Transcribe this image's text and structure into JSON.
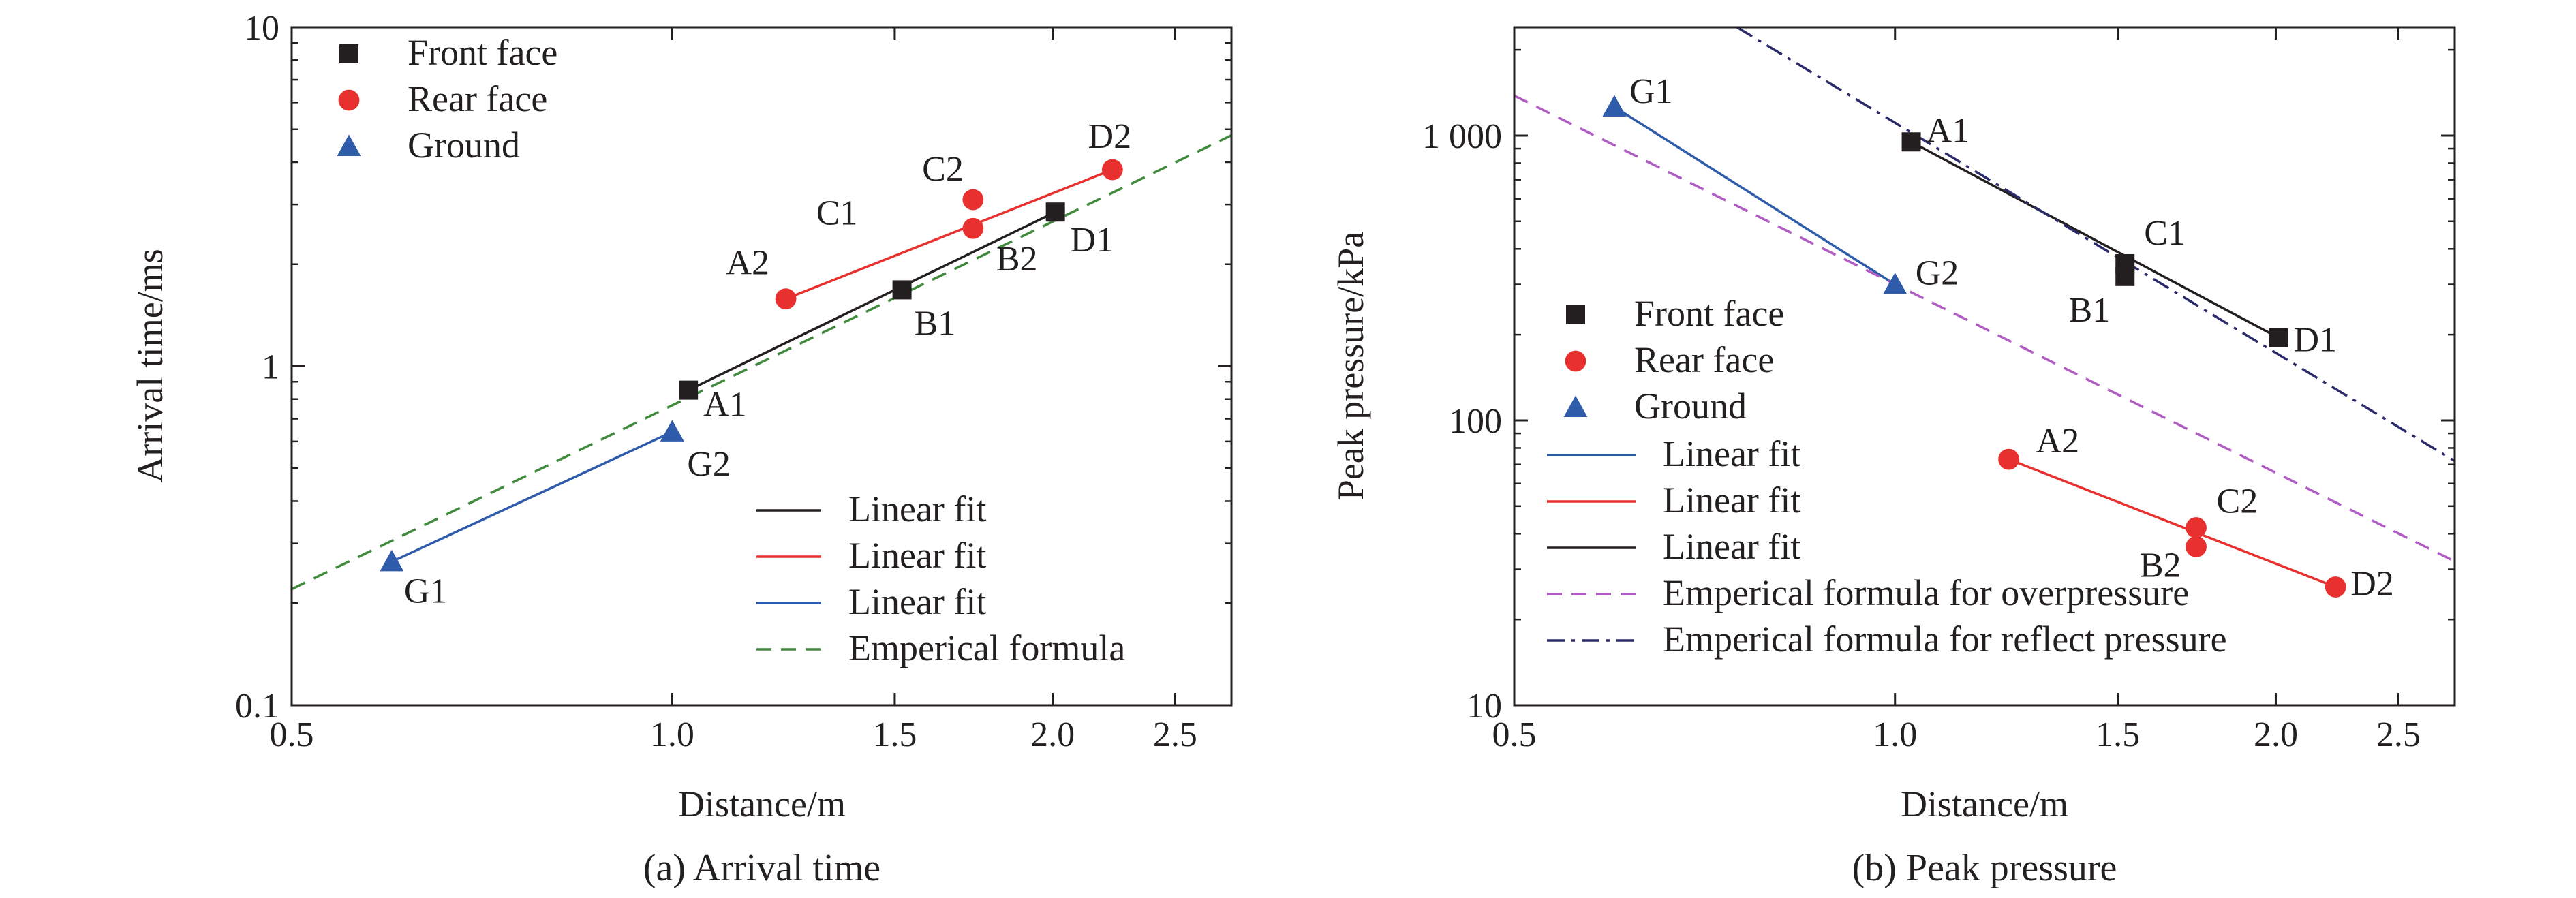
{
  "chart_data": [
    {
      "type": "scatter",
      "caption": "(a) Arrival time",
      "xlabel": "Distance/m",
      "ylabel": "Arrival time/ms",
      "x_scale": "log",
      "y_scale": "log",
      "xlim": [
        0.5,
        2.77
      ],
      "ylim": [
        0.1,
        10
      ],
      "x_ticks": [
        {
          "value": 0.5,
          "label": "0.5"
        },
        {
          "value": 1.0,
          "label": "1.0"
        },
        {
          "value": 1.5,
          "label": "1.5"
        },
        {
          "value": 2.0,
          "label": "2.0"
        },
        {
          "value": 2.5,
          "label": "2.5"
        }
      ],
      "y_ticks": [
        {
          "value": 0.1,
          "label": "0.1"
        },
        {
          "value": 1,
          "label": "1"
        },
        {
          "value": 10,
          "label": "10"
        }
      ],
      "legend_position": "upper-left and lower-right",
      "series": [
        {
          "name": "Front face",
          "marker": "square",
          "color": "#231f20",
          "points": [
            {
              "label": "A1",
              "x": 1.03,
              "y": 0.85
            },
            {
              "label": "B1",
              "x": 1.52,
              "y": 1.68
            },
            {
              "label": "D1",
              "x": 2.01,
              "y": 2.85
            }
          ]
        },
        {
          "name": "Rear face",
          "marker": "circle",
          "color": "#e8312f",
          "points": [
            {
              "label": "A2",
              "x": 1.23,
              "y": 1.58
            },
            {
              "label": "B2",
              "x": 1.73,
              "y": 2.55
            },
            {
              "label": "C2",
              "x": 1.73,
              "y": 3.1
            },
            {
              "label": "D2",
              "x": 2.23,
              "y": 3.8
            }
          ]
        },
        {
          "name": "Ground",
          "marker": "triangle",
          "color": "#2f5bab",
          "points": [
            {
              "label": "G1",
              "x": 0.6,
              "y": 0.265
            },
            {
              "label": "G2",
              "x": 1.0,
              "y": 0.64
            }
          ]
        }
      ],
      "point_annotations": [
        "C1"
      ],
      "fits": [
        {
          "name": "Linear fit",
          "color": "#231f20",
          "style": "solid",
          "x": [
            1.03,
            2.01
          ],
          "y": [
            0.85,
            2.85
          ]
        },
        {
          "name": "Linear fit",
          "color": "#e8312f",
          "style": "solid",
          "x": [
            1.23,
            2.23
          ],
          "y": [
            1.58,
            3.8
          ]
        },
        {
          "name": "Linear fit",
          "color": "#2f5bab",
          "style": "solid",
          "x": [
            0.6,
            1.0
          ],
          "y": [
            0.265,
            0.64
          ]
        },
        {
          "name": "Emperical formula",
          "color": "#3f8a3b",
          "style": "dashed",
          "x": [
            0.5,
            2.77
          ],
          "y": [
            0.22,
            4.8
          ]
        }
      ]
    },
    {
      "type": "scatter",
      "caption": "(b) Peak pressure",
      "xlabel": "Distance/m",
      "ylabel": "Peak pressure/kPa",
      "x_scale": "log",
      "y_scale": "log",
      "xlim": [
        0.5,
        2.77
      ],
      "ylim": [
        10,
        2400
      ],
      "x_ticks": [
        {
          "value": 0.5,
          "label": "0.5"
        },
        {
          "value": 1.0,
          "label": "1.0"
        },
        {
          "value": 1.5,
          "label": "1.5"
        },
        {
          "value": 2.0,
          "label": "2.0"
        },
        {
          "value": 2.5,
          "label": "2.5"
        }
      ],
      "y_ticks": [
        {
          "value": 10,
          "label": "10"
        },
        {
          "value": 100,
          "label": "100"
        },
        {
          "value": 1000,
          "label": "1 000"
        }
      ],
      "legend_position": "center-left",
      "series": [
        {
          "name": "Front face",
          "marker": "square",
          "color": "#231f20",
          "points": [
            {
              "label": "A1",
              "x": 1.03,
              "y": 950
            },
            {
              "label": "B1",
              "x": 1.52,
              "y": 320
            },
            {
              "label": "C1",
              "x": 1.52,
              "y": 355
            },
            {
              "label": "D1",
              "x": 2.01,
              "y": 195
            }
          ]
        },
        {
          "name": "Rear face",
          "marker": "circle",
          "color": "#e8312f",
          "points": [
            {
              "label": "A2",
              "x": 1.23,
              "y": 73
            },
            {
              "label": "B2",
              "x": 1.73,
              "y": 36
            },
            {
              "label": "C2",
              "x": 1.73,
              "y": 42
            },
            {
              "label": "D2",
              "x": 2.23,
              "y": 26
            }
          ]
        },
        {
          "name": "Ground",
          "marker": "triangle",
          "color": "#2f5bab",
          "points": [
            {
              "label": "G1",
              "x": 0.6,
              "y": 1260
            },
            {
              "label": "G2",
              "x": 1.0,
              "y": 300
            }
          ]
        }
      ],
      "fits": [
        {
          "name": "Linear fit",
          "color": "#2f5bab",
          "style": "solid",
          "x": [
            0.6,
            1.0
          ],
          "y": [
            1260,
            300
          ]
        },
        {
          "name": "Linear fit",
          "color": "#e8312f",
          "style": "solid",
          "x": [
            1.23,
            2.23
          ],
          "y": [
            73,
            26
          ]
        },
        {
          "name": "Linear fit",
          "color": "#231f20",
          "style": "solid",
          "x": [
            1.03,
            2.01
          ],
          "y": [
            950,
            195
          ]
        },
        {
          "name": "Emperical formula for overpressure",
          "color": "#b05cc4",
          "style": "dashed",
          "x": [
            0.5,
            2.77
          ],
          "y": [
            1380,
            32
          ]
        },
        {
          "name": "Emperical formula for reflect pressure",
          "color": "#2b2b6b",
          "style": "dashdot",
          "x": [
            0.75,
            2.77
          ],
          "y": [
            2400,
            72
          ]
        }
      ]
    }
  ]
}
